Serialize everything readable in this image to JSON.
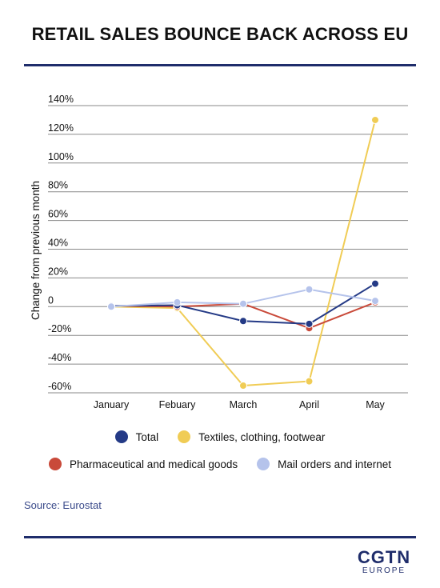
{
  "header": {
    "title": "RETAIL SALES BOUNCE BACK ACROSS EU"
  },
  "footer": {
    "source": "Source: Eurostat",
    "logo_main": "CGTN",
    "logo_sub": "EUROPE"
  },
  "chart_data": {
    "type": "line",
    "ylabel": "Change from previous month",
    "categories": [
      "January",
      "Febuary",
      "March",
      "April",
      "May"
    ],
    "ylim": [
      -60,
      140
    ],
    "y_ticks": [
      "140%",
      "120%",
      "100%",
      "80%",
      "60%",
      "40%",
      "20%",
      "0",
      "-20%",
      "-40%",
      "-60%"
    ],
    "y_tick_values": [
      140,
      120,
      100,
      80,
      60,
      40,
      20,
      0,
      -20,
      -40,
      -60
    ],
    "grid": true,
    "legend_placement": "bottom",
    "series": [
      {
        "name": "Total",
        "color": "#243a86",
        "values": [
          0.5,
          1,
          -10,
          -12,
          16
        ]
      },
      {
        "name": "Textiles, clothing, footwear",
        "color": "#f0cc55",
        "values": [
          0,
          -1,
          -55,
          -52,
          130
        ]
      },
      {
        "name": "Pharmaceutical and medical goods",
        "color": "#c94a3a",
        "values": [
          0.5,
          0,
          2,
          -15,
          3
        ]
      },
      {
        "name": "Mail orders and internet",
        "color": "#b5c3eb",
        "values": [
          0,
          3,
          2,
          12,
          4
        ]
      }
    ],
    "legend_rows": [
      [
        0,
        1
      ],
      [
        2,
        3
      ]
    ]
  }
}
